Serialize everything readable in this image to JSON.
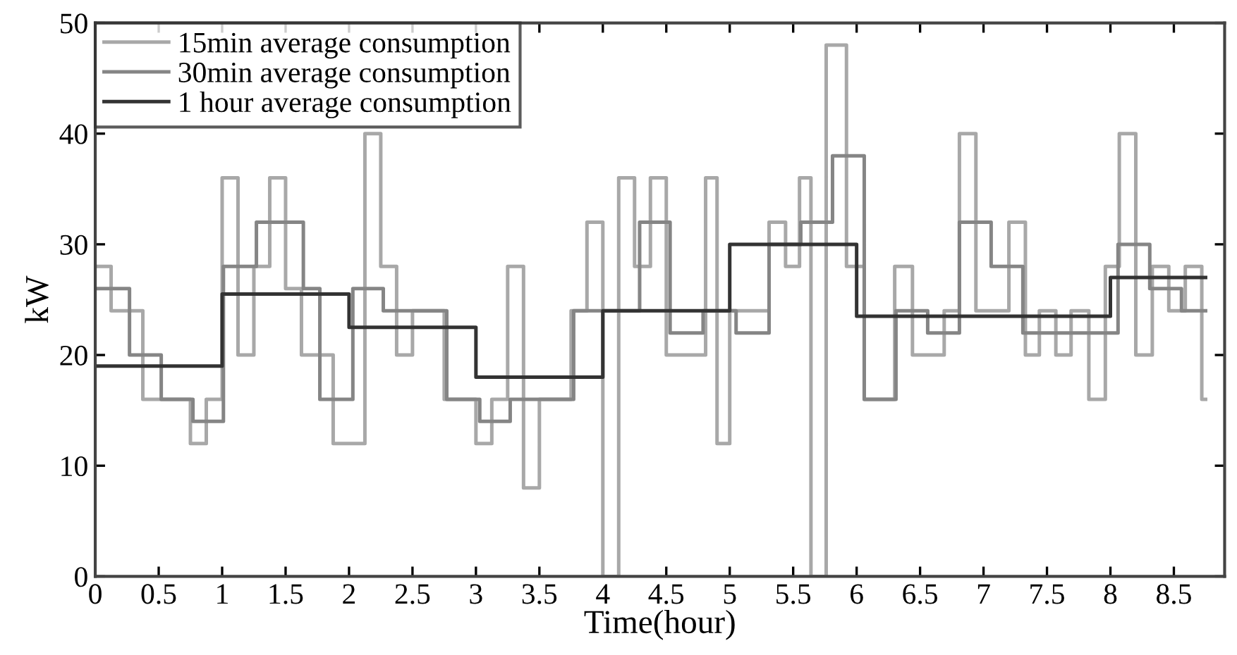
{
  "chart_data": {
    "type": "step",
    "xlabel": "Time(hour)",
    "ylabel": "kW",
    "xlim": [
      0,
      8.9
    ],
    "ylim": [
      0,
      50
    ],
    "xticks": [
      0,
      0.5,
      1,
      1.5,
      2,
      2.5,
      3,
      3.5,
      4,
      4.5,
      5,
      5.5,
      6,
      6.5,
      7,
      7.5,
      8,
      8.5
    ],
    "yticks": [
      0,
      10,
      20,
      30,
      40,
      50
    ],
    "grid": false,
    "legend": "top left",
    "line_style": "solid",
    "marker": "none",
    "series": [
      {
        "name": "15min average consumption",
        "color": "#a8a8a8",
        "x": [
          0,
          0.125,
          0.375,
          0.75,
          0.875,
          1.0,
          1.125,
          1.25,
          1.375,
          1.5,
          1.625,
          1.875,
          2.125,
          2.25,
          2.375,
          2.5,
          2.75,
          3.0,
          3.125,
          3.25,
          3.375,
          3.5,
          3.75,
          3.875,
          4.0,
          4.125,
          4.25,
          4.375,
          4.5,
          4.81,
          4.9,
          5.0,
          5.31,
          5.44,
          5.55,
          5.64,
          5.76,
          5.92,
          6.06,
          6.3,
          6.44,
          6.69,
          6.81,
          6.94,
          7.2,
          7.33,
          7.44,
          7.57,
          7.69,
          7.83,
          7.96,
          8.07,
          8.2,
          8.33,
          8.46,
          8.59,
          8.72,
          8.75
        ],
        "values": [
          28,
          24,
          16,
          12,
          16,
          36,
          20,
          28,
          36,
          26,
          20,
          12,
          40,
          28,
          20,
          24,
          16,
          12,
          16,
          28,
          8,
          16,
          24,
          32,
          0,
          36,
          28,
          36,
          20,
          36,
          12,
          24,
          32,
          28,
          36,
          0,
          48,
          28,
          16,
          28,
          20,
          24,
          40,
          24,
          32,
          20,
          24,
          20,
          24,
          16,
          28,
          40,
          20,
          28,
          24,
          28,
          16,
          16
        ]
      },
      {
        "name": "30min average consumption",
        "color": "#858585",
        "x": [
          0,
          0.27,
          0.52,
          0.77,
          1.01,
          1.27,
          1.64,
          1.77,
          2.03,
          2.27,
          2.77,
          3.03,
          3.27,
          3.77,
          4.03,
          4.29,
          4.53,
          4.79,
          5.05,
          5.31,
          5.56,
          5.81,
          6.06,
          6.31,
          6.56,
          6.81,
          7.06,
          7.31,
          8.06,
          8.31,
          8.56,
          8.75
        ],
        "values": [
          26,
          20,
          16,
          14,
          28,
          32,
          26,
          16,
          26,
          24,
          16,
          14,
          16,
          24,
          24,
          32,
          22,
          24,
          22,
          30,
          32,
          38,
          16,
          24,
          22,
          32,
          28,
          22,
          30,
          26,
          24,
          24
        ]
      },
      {
        "name": "1 hour average consumption",
        "color": "#333333",
        "x": [
          0,
          1,
          2,
          3,
          4,
          5,
          6,
          7,
          8,
          8.75
        ],
        "values": [
          19,
          25.5,
          22.5,
          18,
          24,
          30,
          23.5,
          23.5,
          27,
          27
        ]
      }
    ]
  }
}
